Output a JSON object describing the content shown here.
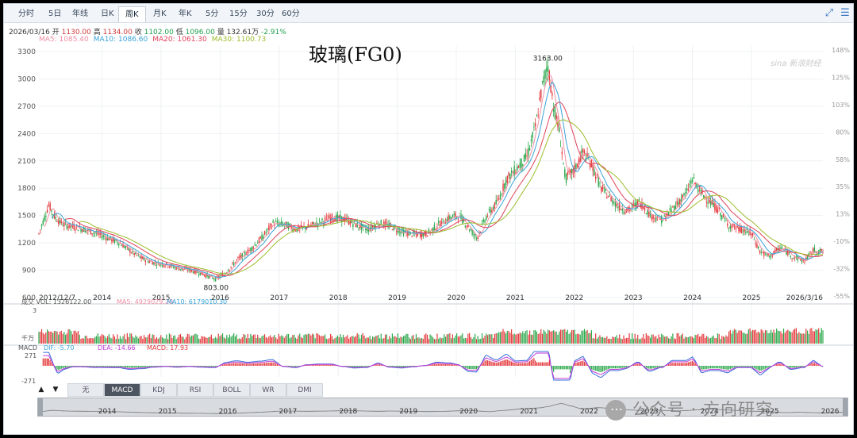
{
  "tabs": [
    "分时",
    "5日",
    "年线",
    "日K",
    "周K",
    "月K",
    "年K",
    "5分",
    "15分",
    "30分",
    "60分"
  ],
  "active_tab": "周K",
  "icons": {
    "expand": "expand-icon",
    "settings": "settings-icon"
  },
  "quote": {
    "date": "2026/03/16",
    "open_label": "开",
    "open": "1130.00",
    "high_label": "高",
    "high": "1134.00",
    "close_label": "收",
    "close": "1102.00",
    "low_label": "低",
    "low": "1096.00",
    "vol_label": "量",
    "vol": "132.61万",
    "change": "-2.91%"
  },
  "ma": [
    {
      "label": "MA5: 1085.40",
      "color": "#f08fa4"
    },
    {
      "label": "MA10: 1086.60",
      "color": "#39a3d8"
    },
    {
      "label": "MA20: 1061.30",
      "color": "#e0435a"
    },
    {
      "label": "MA30: 1100.73",
      "color": "#9cbd2b"
    }
  ],
  "vol_legend": {
    "vol": "成交 VOL: 1326122.00",
    "ma5": "MA5: 4929029.20",
    "ma10": "MA10: 6179010.30",
    "top": "3",
    "unit": "千万"
  },
  "macd_legend": {
    "name": "MACD",
    "dif": "DIF: -5.70",
    "dea": "DEA: -14.66",
    "macd": "MACD: 17.93",
    "top": "271",
    "bottom": "-271"
  },
  "indicators": [
    "无",
    "MACD",
    "KDJ",
    "RSI",
    "BOLL",
    "WR",
    "DMI"
  ],
  "active_indicator": "MACD",
  "nav_years": [
    "2014",
    "2015",
    "2016",
    "2017",
    "2018",
    "2019",
    "2020",
    "2021",
    "2022",
    "2023",
    "2024",
    "2025",
    "2026"
  ],
  "watermark": "公众号 · 方向研究",
  "sina": "sina 新浪财经",
  "chart_data": {
    "type": "line",
    "title": "玻璃(FG0)",
    "y_ticks": [
      600,
      900,
      1200,
      1500,
      1800,
      2100,
      2400,
      2700,
      3000,
      3300
    ],
    "ylim": [
      600,
      3300
    ],
    "pct_ticks": [
      "148%",
      "125%",
      "103%",
      "80%",
      "58%",
      "35%",
      "13%",
      "-10%",
      "-32%",
      "-55%"
    ],
    "x_labels": [
      "2012/12/7",
      "2014",
      "2015",
      "2016",
      "2017",
      "2018",
      "2019",
      "2020",
      "2021",
      "2022",
      "2023",
      "2024",
      "2025",
      "2026/3/16"
    ],
    "x_label_years": [
      2012.93,
      2014,
      2015,
      2016,
      2017,
      2018,
      2019,
      2020,
      2021,
      2022,
      2023,
      2024,
      2025,
      2026.21
    ],
    "xlim": [
      2012.93,
      2026.21
    ],
    "max_label": "3163.00",
    "max_point": [
      2021.55,
      3163
    ],
    "min_label": "803.00",
    "min_point": [
      2015.93,
      803
    ],
    "price": {
      "x": [
        2012.93,
        2013.1,
        2013.2,
        2013.35,
        2013.5,
        2013.7,
        2014.0,
        2014.3,
        2014.5,
        2014.7,
        2014.9,
        2015.1,
        2015.3,
        2015.5,
        2015.7,
        2015.93,
        2016.1,
        2016.3,
        2016.5,
        2016.7,
        2016.9,
        2017.1,
        2017.3,
        2017.5,
        2017.7,
        2017.9,
        2018.1,
        2018.3,
        2018.5,
        2018.7,
        2018.9,
        2019.1,
        2019.3,
        2019.5,
        2019.7,
        2019.9,
        2020.05,
        2020.2,
        2020.35,
        2020.5,
        2020.7,
        2020.85,
        2021.0,
        2021.2,
        2021.35,
        2021.45,
        2021.55,
        2021.65,
        2021.75,
        2021.85,
        2022.0,
        2022.15,
        2022.3,
        2022.45,
        2022.6,
        2022.75,
        2022.9,
        2023.1,
        2023.3,
        2023.5,
        2023.7,
        2023.9,
        2024.0,
        2024.15,
        2024.3,
        2024.45,
        2024.6,
        2024.8,
        2025.0,
        2025.15,
        2025.3,
        2025.5,
        2025.7,
        2025.9,
        2026.05,
        2026.21
      ],
      "y": [
        1300,
        1620,
        1480,
        1400,
        1380,
        1350,
        1280,
        1200,
        1100,
        1020,
        980,
        960,
        920,
        900,
        860,
        803,
        880,
        1020,
        1120,
        1250,
        1420,
        1400,
        1350,
        1380,
        1430,
        1480,
        1460,
        1400,
        1350,
        1420,
        1380,
        1320,
        1290,
        1300,
        1400,
        1480,
        1500,
        1380,
        1250,
        1480,
        1650,
        1900,
        2000,
        2150,
        2500,
        2900,
        3163,
        2700,
        2400,
        1900,
        2000,
        2200,
        2050,
        1800,
        1700,
        1600,
        1550,
        1650,
        1500,
        1450,
        1600,
        1750,
        1900,
        1750,
        1650,
        1550,
        1400,
        1350,
        1300,
        1100,
        1050,
        1150,
        1050,
        1000,
        1120,
        1102
      ]
    },
    "volume_peak_label": "3",
    "macd_range": [
      -271,
      271
    ]
  }
}
